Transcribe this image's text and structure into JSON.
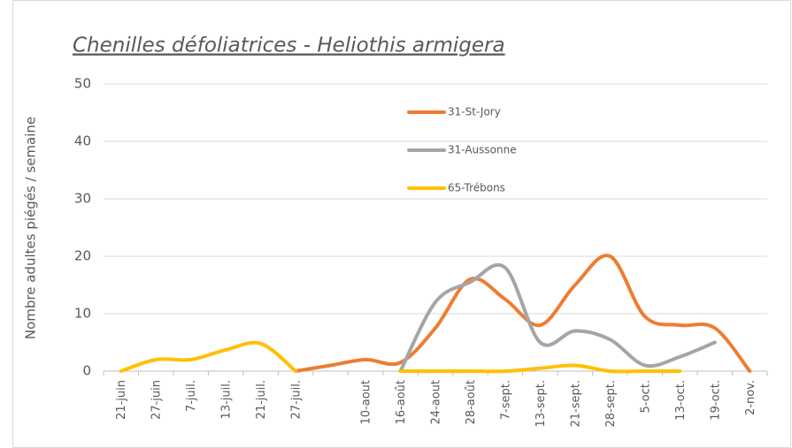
{
  "chart_data": {
    "type": "line",
    "title": "Chenilles défoliatrices - Heliothis armigera",
    "y_label": "Nombre adultes piégés / semaine",
    "categories": [
      "21-juin",
      "27-juin",
      "7-juil.",
      "13-juil.",
      "21-juil.",
      "27-juil.",
      null,
      "10-aout",
      "16-août",
      "24-aout",
      "28-août",
      "7-sept.",
      "13-sept.",
      "21-sept.",
      "28-sept.",
      "5-oct.",
      "13-oct.",
      "19-oct.",
      "2-nov."
    ],
    "series": [
      {
        "name": "31-St-Jory",
        "color": "#ed7d31",
        "values": [
          null,
          null,
          null,
          null,
          null,
          0,
          1,
          2,
          1.5,
          7.5,
          16,
          12.5,
          8,
          15,
          20,
          9.5,
          8,
          7.5,
          0
        ]
      },
      {
        "name": "31-Aussonne",
        "color": "#a5a5a5",
        "values": [
          null,
          null,
          null,
          null,
          null,
          null,
          null,
          null,
          0,
          12,
          15.5,
          18,
          5,
          7,
          5.5,
          1,
          2.5,
          5,
          null
        ]
      },
      {
        "name": "65-Trébons",
        "color": "#ffc000",
        "values": [
          0,
          2,
          2,
          3.7,
          4.8,
          0,
          null,
          null,
          0,
          0,
          0,
          0,
          0.5,
          1,
          0,
          0,
          0,
          null,
          null
        ]
      }
    ],
    "ylim": [
      0,
      50
    ],
    "yticks": [
      0,
      10,
      20,
      30,
      40,
      50
    ],
    "grid": true,
    "smooth": true
  }
}
